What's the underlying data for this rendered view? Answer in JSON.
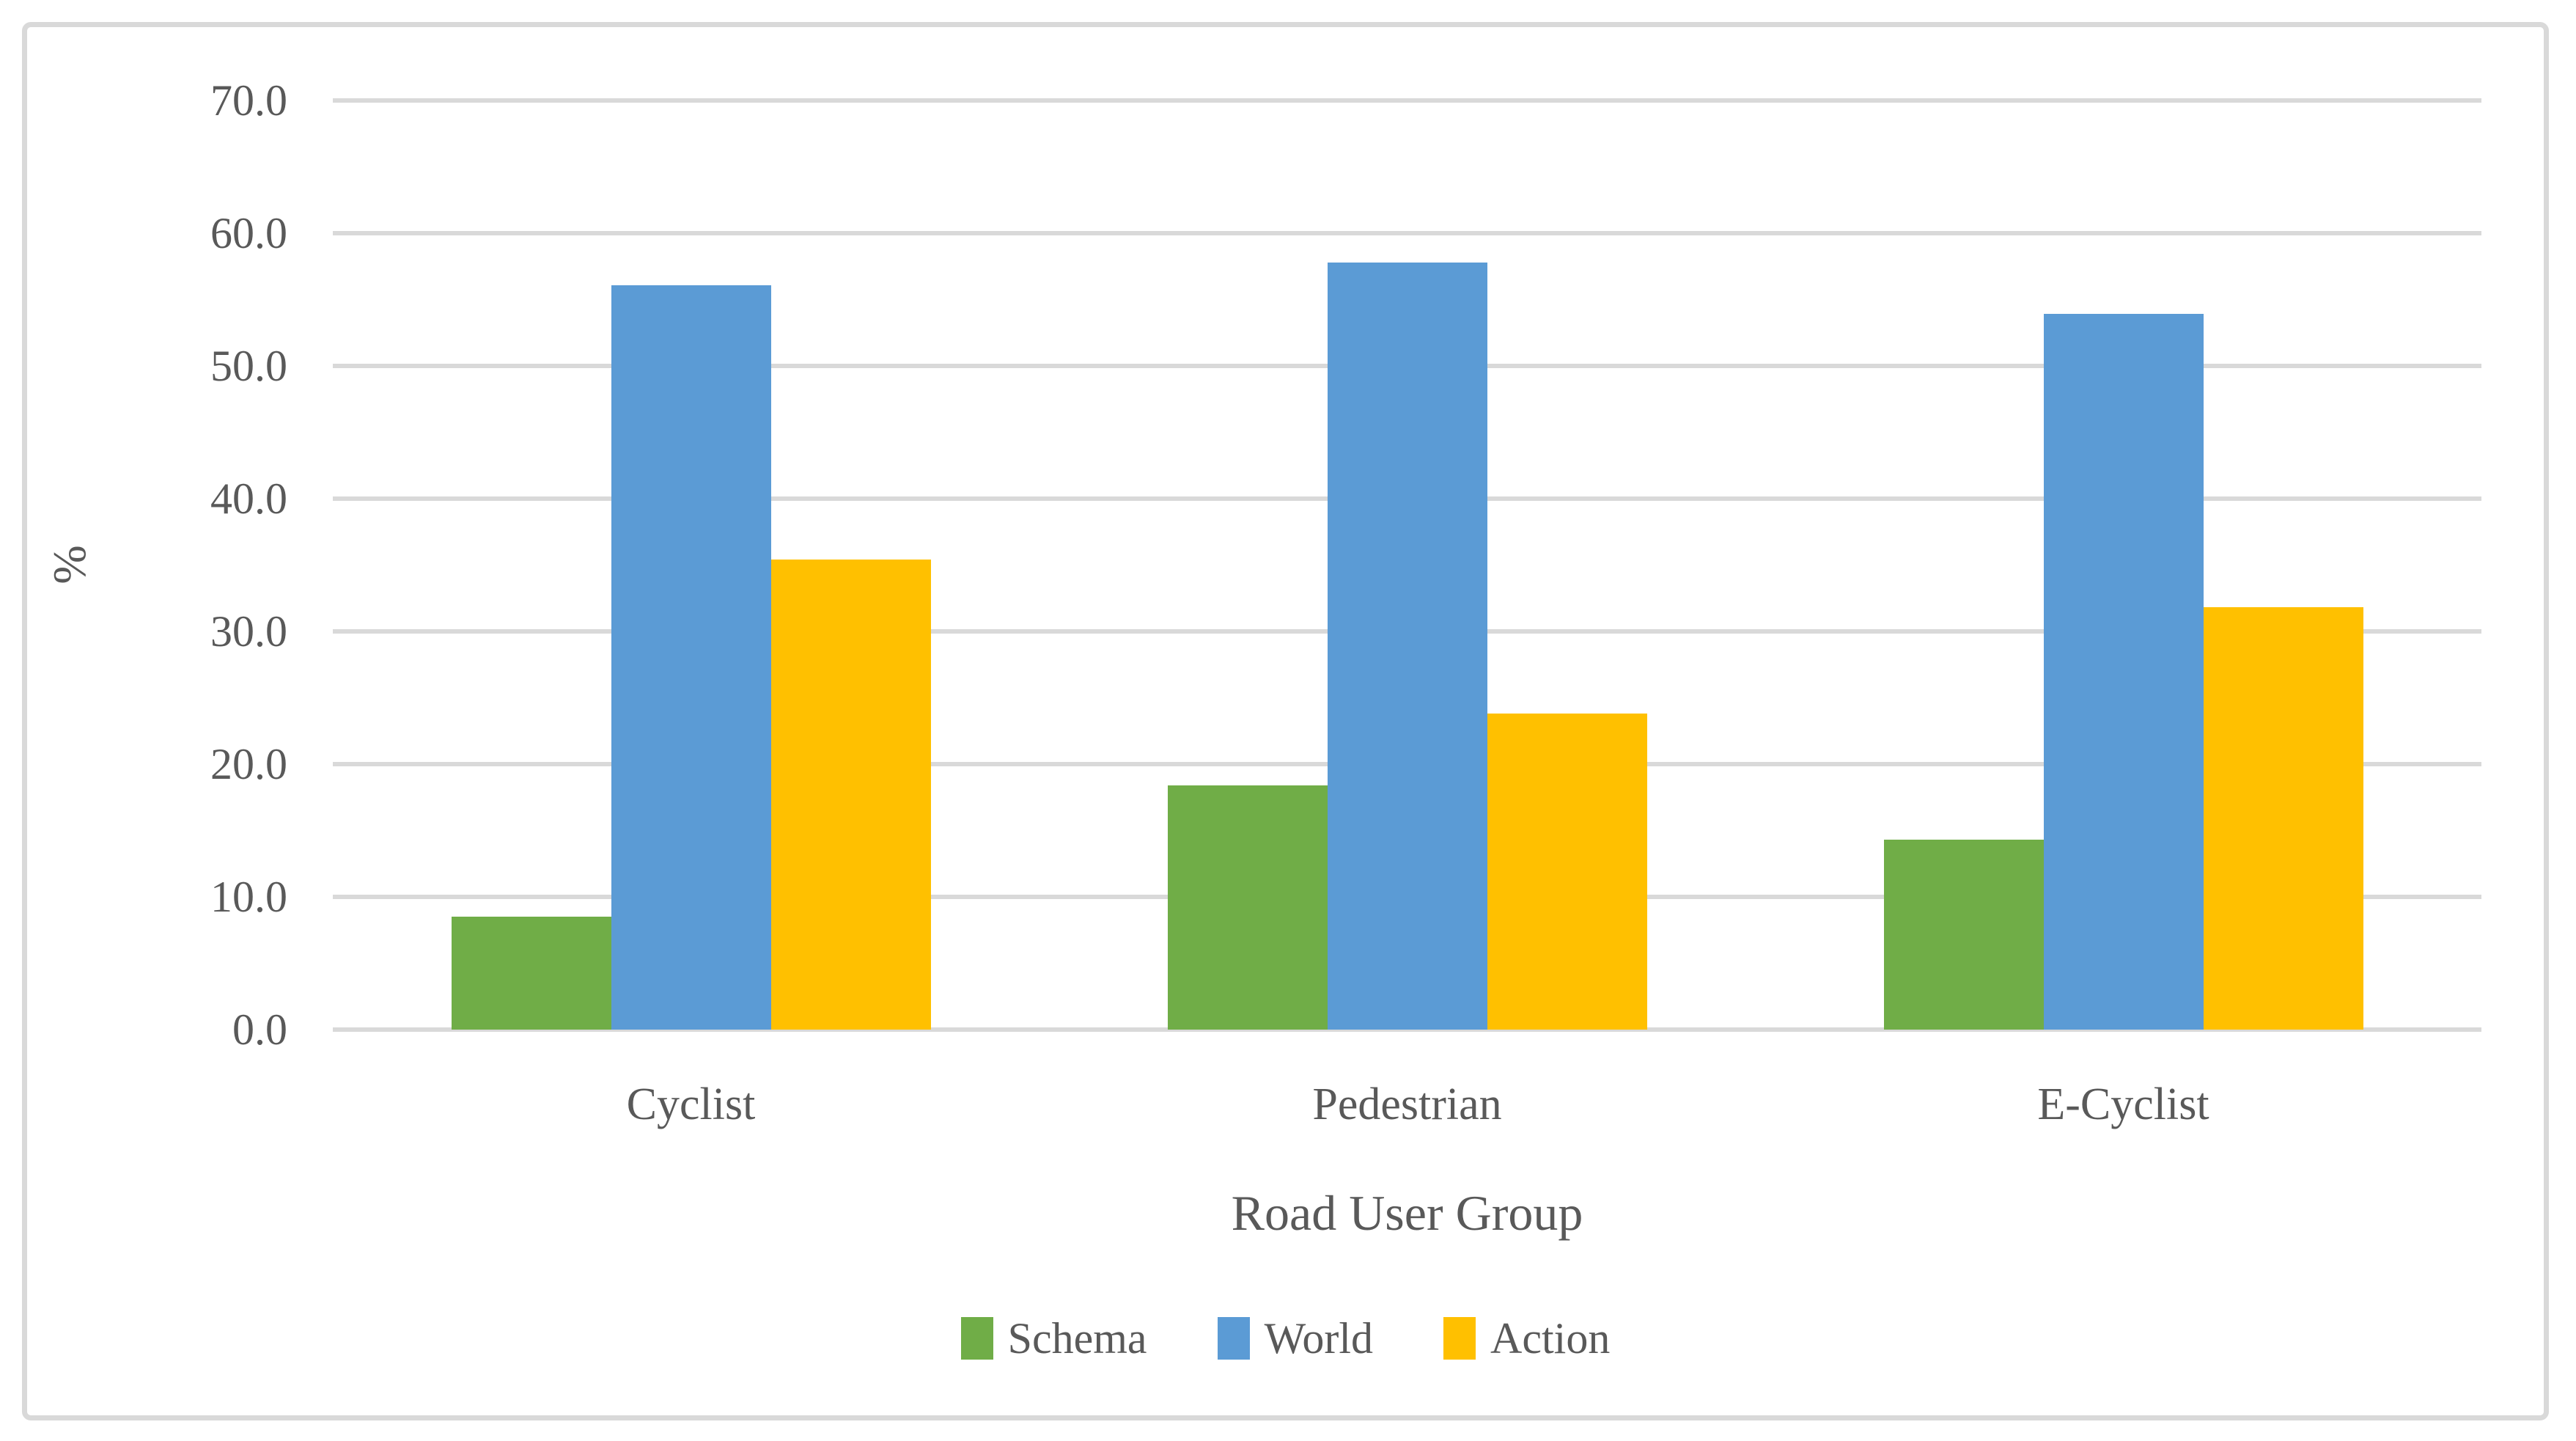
{
  "chart_data": {
    "type": "bar",
    "title": "",
    "categories": [
      "Cyclist",
      "Pedestrian",
      "E-Cyclist"
    ],
    "series": [
      {
        "name": "Schema",
        "color": "#70AD47",
        "values": [
          8.5,
          18.4,
          14.3
        ]
      },
      {
        "name": "World",
        "color": "#5B9BD5",
        "values": [
          56.1,
          57.8,
          53.9
        ]
      },
      {
        "name": "Action",
        "color": "#FFC000",
        "values": [
          35.4,
          23.8,
          31.8
        ]
      }
    ],
    "xlabel": "Road User Group",
    "ylabel": "%",
    "ylim": [
      0,
      70
    ],
    "ytick_step": 10,
    "yticks": [
      "0.0",
      "10.0",
      "20.0",
      "30.0",
      "40.0",
      "50.0",
      "60.0",
      "70.0"
    ],
    "grid": true,
    "legend_position": "bottom",
    "colors": {
      "gridline": "#D9D9D9",
      "frame_border": "#D9D9D9",
      "text": "#595959",
      "background": "#FFFFFF"
    }
  }
}
